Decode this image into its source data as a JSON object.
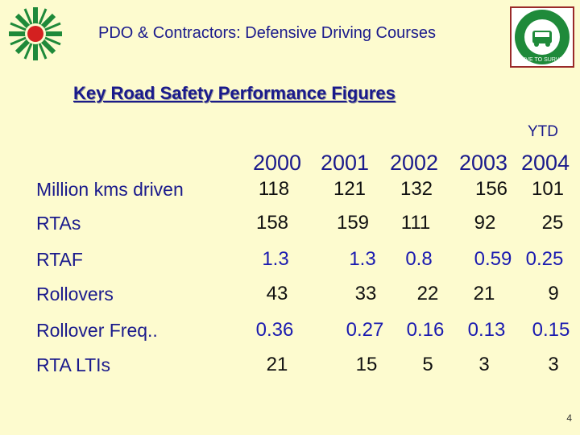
{
  "header": {
    "title": "PDO & Contractors: Defensive Driving Courses",
    "left_logo": "pdo-sunburst-logo",
    "right_logo": "drive-to-survive-badge",
    "right_logo_text": "DRIVE TO SURVIVE"
  },
  "subtitle": "Key Road Safety Performance Figures",
  "ytd_label": "YTD",
  "years": [
    "2000",
    "2001",
    "2002",
    "2003",
    "2004"
  ],
  "rows": [
    {
      "label": "Million kms driven",
      "values": [
        "118",
        "121",
        "132",
        "156",
        "101"
      ],
      "color": "#111111"
    },
    {
      "label": "RTAs",
      "values": [
        "158",
        "159",
        "111",
        "92",
        "25"
      ],
      "color": "#111111"
    },
    {
      "label": "RTAF",
      "values": [
        "1.3",
        "1.3",
        "0.8",
        "0.59",
        "0.25"
      ],
      "color": "#1a1ab0"
    },
    {
      "label": "Rollovers",
      "values": [
        "43",
        "33",
        "22",
        "21",
        "9"
      ],
      "color": "#111111"
    },
    {
      "label": "Rollover Freq..",
      "values": [
        "0.36",
        "0.27",
        "0.16",
        "0.13",
        "0.15"
      ],
      "color": "#1a1ab0"
    },
    {
      "label": "RTA LTIs",
      "values": [
        "21",
        "15",
        "5",
        "3",
        "3"
      ],
      "color": "#111111"
    }
  ],
  "page_number": "4",
  "colors": {
    "background": "#fdfbcf",
    "heading": "#1a1a8c",
    "logo_green": "#1f8a3a",
    "logo_red": "#d42020"
  }
}
